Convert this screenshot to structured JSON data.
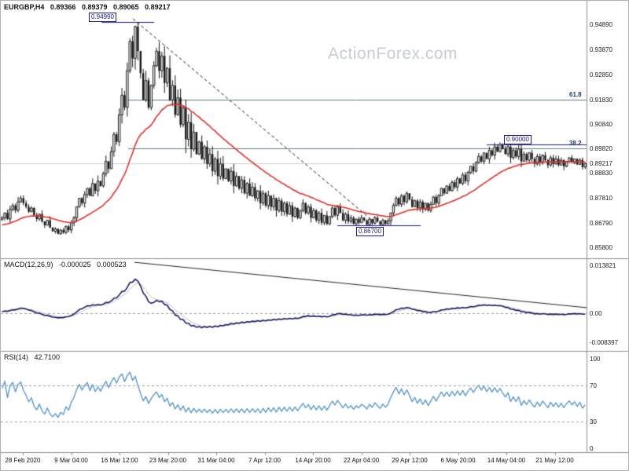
{
  "meta": {
    "site_watermark": "ActionForex.com"
  },
  "header": {
    "symbol": "EURGBP,H4",
    "open": "0.89366",
    "high": "0.89379",
    "low": "0.89065",
    "close": "0.89217"
  },
  "colors": {
    "candle": "#151515",
    "ma": "#e0312e",
    "macd_main": "#181a66",
    "macd_signal": "#bdbdbd",
    "rsi": "#4f93ce",
    "fib_line": "#5f7d7d",
    "marker": "#1a1a8c",
    "watermark": "#c9ccd6",
    "grid_dashed": "#9a9a9a",
    "separator": "#8c8c8c",
    "current_price_line": "#cfcfcf"
  },
  "chart_data": {
    "type": "candlestick",
    "symbol": "EURGBP",
    "timeframe": "H4",
    "x_labels": [
      "28 Feb 2020",
      "9 Mar 04:00",
      "16 Mar 12:00",
      "23 Mar 20:00",
      "31 Mar 04:00",
      "7 Apr 12:00",
      "14 Apr 20:00",
      "22 Apr 04:00",
      "29 Apr 12:00",
      "6 May 20:00",
      "14 May 04:00",
      "21 May 12:00"
    ],
    "price_axis": [
      {
        "text": "0.94890",
        "value": 0.9489
      },
      {
        "text": "0.93870",
        "value": 0.9387
      },
      {
        "text": "0.92850",
        "value": 0.9285
      },
      {
        "text": "0.91830",
        "value": 0.9183
      },
      {
        "text": "0.90840",
        "value": 0.9084
      },
      {
        "text": "0.89820",
        "value": 0.8982
      },
      {
        "text": "0.88830",
        "value": 0.8883
      },
      {
        "text": "0.87810",
        "value": 0.8781
      },
      {
        "text": "0.86790",
        "value": 0.8679
      },
      {
        "text": "0.85800",
        "value": 0.858
      }
    ],
    "current_price": {
      "text": "0.89217",
      "value": 0.89217
    },
    "markers": [
      {
        "name": "high",
        "text": "0.94990",
        "value": 0.9499
      },
      {
        "name": "round",
        "text": "0.90000",
        "value": 0.9
      },
      {
        "name": "low",
        "text": "0.86700",
        "value": 0.867
      }
    ],
    "fib_levels": [
      {
        "text": "61.8",
        "value": 0.9183
      },
      {
        "text": "38.2",
        "value": 0.8982
      }
    ],
    "trendlines": {
      "price": {
        "from_x_frac": 0.2255,
        "from_price": 0.9512,
        "to_x_frac": 0.634,
        "to_price": 0.869,
        "style": "dashed"
      },
      "macd": {
        "from_x_frac": 0.228,
        "from_value": 0.0147,
        "to_x_frac": 1.0,
        "to_value": 0.0016,
        "style": "solid"
      }
    },
    "warmup_closes": [
      0.862,
      0.8628,
      0.8622,
      0.8632,
      0.864,
      0.8634,
      0.8644,
      0.865,
      0.8645,
      0.8655,
      0.866,
      0.8654,
      0.8664,
      0.867,
      0.8663,
      0.8672,
      0.8678,
      0.867,
      0.868,
      0.8686,
      0.8678,
      0.8685,
      0.869,
      0.8682,
      0.8688,
      0.8694,
      0.8686,
      0.8692,
      0.8684,
      0.8692
    ],
    "closes": [
      0.87,
      0.872,
      0.8695,
      0.8735,
      0.875,
      0.873,
      0.8765,
      0.878,
      0.876,
      0.8745,
      0.8725,
      0.874,
      0.871,
      0.8695,
      0.8715,
      0.8685,
      0.867,
      0.869,
      0.866,
      0.8645,
      0.8655,
      0.8635,
      0.865,
      0.864,
      0.8665,
      0.865,
      0.868,
      0.87,
      0.8745,
      0.878,
      0.876,
      0.8795,
      0.882,
      0.879,
      0.884,
      0.881,
      0.885,
      0.883,
      0.888,
      0.893,
      0.89,
      0.897,
      0.904,
      0.901,
      0.912,
      0.92,
      0.915,
      0.93,
      0.942,
      0.935,
      0.948,
      0.938,
      0.929,
      0.918,
      0.926,
      0.915,
      0.924,
      0.932,
      0.938,
      0.93,
      0.936,
      0.925,
      0.931,
      0.918,
      0.924,
      0.912,
      0.919,
      0.908,
      0.915,
      0.902,
      0.909,
      0.898,
      0.905,
      0.896,
      0.901,
      0.894,
      0.899,
      0.892,
      0.896,
      0.889,
      0.894,
      0.887,
      0.892,
      0.886,
      0.89,
      0.885,
      0.889,
      0.883,
      0.887,
      0.882,
      0.8855,
      0.88,
      0.884,
      0.879,
      0.8825,
      0.878,
      0.881,
      0.876,
      0.88,
      0.875,
      0.879,
      0.8745,
      0.878,
      0.873,
      0.877,
      0.8725,
      0.876,
      0.8715,
      0.875,
      0.8705,
      0.874,
      0.87,
      0.873,
      0.876,
      0.872,
      0.8745,
      0.87,
      0.873,
      0.869,
      0.872,
      0.868,
      0.871,
      0.8675,
      0.8705,
      0.874,
      0.871,
      0.8745,
      0.872,
      0.869,
      0.8715,
      0.8685,
      0.87,
      0.8675,
      0.8695,
      0.868,
      0.87,
      0.869,
      0.8672,
      0.8695,
      0.8678,
      0.87,
      0.8685,
      0.8672,
      0.869,
      0.8675,
      0.8688,
      0.872,
      0.875,
      0.878,
      0.8755,
      0.879,
      0.8765,
      0.88,
      0.8775,
      0.8745,
      0.877,
      0.874,
      0.8765,
      0.8735,
      0.876,
      0.873,
      0.8755,
      0.8785,
      0.876,
      0.879,
      0.882,
      0.88,
      0.883,
      0.881,
      0.8845,
      0.8825,
      0.886,
      0.884,
      0.8875,
      0.885,
      0.8885,
      0.891,
      0.889,
      0.8925,
      0.895,
      0.893,
      0.8965,
      0.894,
      0.8975,
      0.8955,
      0.899,
      0.897,
      0.9,
      0.898,
      0.896,
      0.899,
      0.8945,
      0.8975,
      0.895,
      0.898,
      0.893,
      0.896,
      0.8935,
      0.8965,
      0.894,
      0.892,
      0.895,
      0.8925,
      0.8955,
      0.8935,
      0.8915,
      0.8945,
      0.892,
      0.894,
      0.8915,
      0.8935,
      0.891,
      0.893,
      0.8945,
      0.8925,
      0.894,
      0.8918,
      0.8936,
      0.8907,
      0.8922
    ],
    "indicators": {
      "ma": {
        "label": "moving average",
        "color_key": "ma"
      },
      "macd": {
        "name": "MACD(12,26,9)",
        "value_main": "-0.000025",
        "value_signal": "0.000523",
        "axis_labels": [
          {
            "text": "0.013821",
            "value": 0.013821
          },
          {
            "text": "0.00",
            "value": 0
          },
          {
            "text": "-0.008397",
            "value": -0.008397
          }
        ]
      },
      "rsi": {
        "name": "RSI(14)",
        "value": "42.7100",
        "axis_labels": [
          {
            "text": "100",
            "value": 100
          },
          {
            "text": "70",
            "value": 70
          },
          {
            "text": "30",
            "value": 30
          },
          {
            "text": "0",
            "value": 0
          }
        ],
        "guide_levels": [
          70,
          30
        ]
      }
    }
  }
}
